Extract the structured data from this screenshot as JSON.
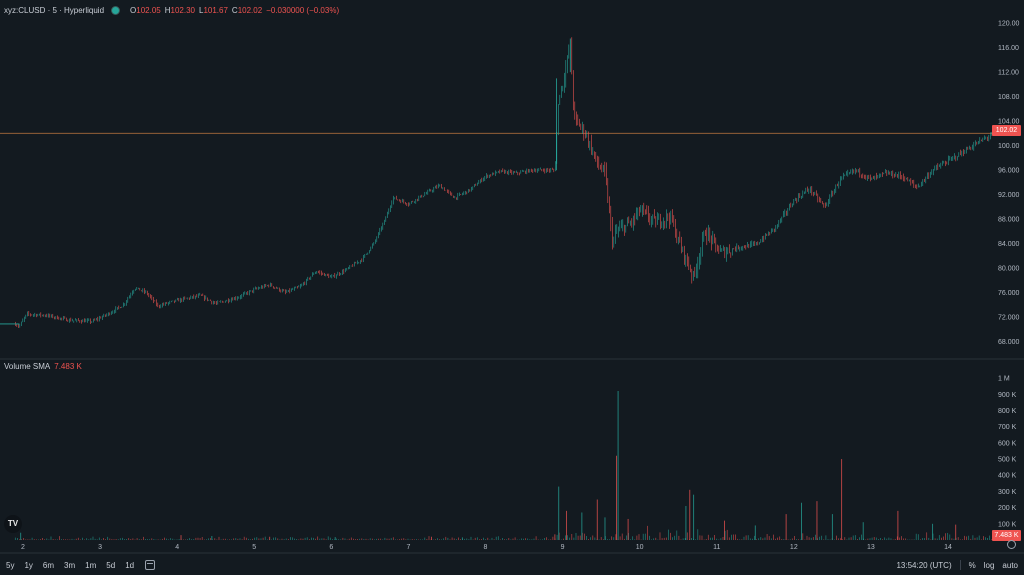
{
  "legend": {
    "symbol": "xyz:CLUSD · 5 · Hyperliquid",
    "o_label": "O",
    "o_value": "102.05",
    "h_label": "H",
    "h_value": "102.30",
    "l_label": "L",
    "l_value": "101.67",
    "c_label": "C",
    "c_value": "102.02",
    "change": "−0.030000 (−0.03%)"
  },
  "volume_legend": {
    "label": "Volume SMA",
    "value": "7.483 K"
  },
  "last_price_tag": "102.02",
  "volume_tag": "7.483 K",
  "timeframes": [
    "5y",
    "1y",
    "6m",
    "3m",
    "1m",
    "5d",
    "1d"
  ],
  "clock": "13:54:20 (UTC)",
  "toolbar": {
    "percent": "%",
    "log": "log",
    "auto": "auto"
  },
  "logo_text": "TV",
  "colors": {
    "up": "#26a69a",
    "down": "#ef5350",
    "background": "#131a20",
    "price_line": "#a86a3a"
  },
  "chart_data": [
    {
      "type": "candlestick",
      "title": "",
      "x_labels": [
        "2",
        "3",
        "4",
        "5",
        "6",
        "7",
        "8",
        "9",
        "10",
        "11",
        "12",
        "13",
        "14"
      ],
      "y_ticks": [
        "120.00",
        "116.00",
        "112.00",
        "108.00",
        "104.00",
        "100.00",
        "96.000",
        "92.000",
        "88.000",
        "84.000",
        "80.000",
        "76.000",
        "72.000",
        "68.000"
      ],
      "ylim": [
        65.5,
        121.5
      ],
      "last_price": 102.02,
      "price_path": [
        [
          1.0,
          70.9
        ],
        [
          1.9,
          70.9
        ],
        [
          1.95,
          70.5
        ],
        [
          2.05,
          72.5
        ],
        [
          2.3,
          72.3
        ],
        [
          2.6,
          71.5
        ],
        [
          2.9,
          71.3
        ],
        [
          3.1,
          72.5
        ],
        [
          3.3,
          74.0
        ],
        [
          3.45,
          76.8
        ],
        [
          3.6,
          76.0
        ],
        [
          3.75,
          73.8
        ],
        [
          3.9,
          74.4
        ],
        [
          4.1,
          75.0
        ],
        [
          4.3,
          75.5
        ],
        [
          4.5,
          74.2
        ],
        [
          4.8,
          75.3
        ],
        [
          5.0,
          76.5
        ],
        [
          5.2,
          77.3
        ],
        [
          5.4,
          76.0
        ],
        [
          5.6,
          77.0
        ],
        [
          5.8,
          79.5
        ],
        [
          6.0,
          78.5
        ],
        [
          6.2,
          79.8
        ],
        [
          6.4,
          81.5
        ],
        [
          6.55,
          84.0
        ],
        [
          6.7,
          88.0
        ],
        [
          6.8,
          91.5
        ],
        [
          7.0,
          90.5
        ],
        [
          7.2,
          92.0
        ],
        [
          7.4,
          93.5
        ],
        [
          7.6,
          91.5
        ],
        [
          7.8,
          92.8
        ],
        [
          8.0,
          95.0
        ],
        [
          8.2,
          95.8
        ],
        [
          8.4,
          95.5
        ],
        [
          8.6,
          96.0
        ],
        [
          8.9,
          96.0
        ],
        [
          8.95,
          108.0
        ],
        [
          9.0,
          110.0
        ],
        [
          9.1,
          116.5
        ],
        [
          9.15,
          104.5
        ],
        [
          9.3,
          102.0
        ],
        [
          9.45,
          97.0
        ],
        [
          9.55,
          95.5
        ],
        [
          9.65,
          84.0
        ],
        [
          9.7,
          86.0
        ],
        [
          9.9,
          87.5
        ],
        [
          10.0,
          89.5
        ],
        [
          10.2,
          87.5
        ],
        [
          10.4,
          88.5
        ],
        [
          10.5,
          84.5
        ],
        [
          10.7,
          78.5
        ],
        [
          10.85,
          86.0
        ],
        [
          11.05,
          82.5
        ],
        [
          11.3,
          83.5
        ],
        [
          11.5,
          83.8
        ],
        [
          11.75,
          86.5
        ],
        [
          12.0,
          91.0
        ],
        [
          12.2,
          93.0
        ],
        [
          12.4,
          90.0
        ],
        [
          12.6,
          94.5
        ],
        [
          12.8,
          96.0
        ],
        [
          13.0,
          94.5
        ],
        [
          13.2,
          95.5
        ],
        [
          13.4,
          95.0
        ],
        [
          13.6,
          93.2
        ],
        [
          13.8,
          96.0
        ],
        [
          14.0,
          97.5
        ],
        [
          14.2,
          99.0
        ],
        [
          14.45,
          101.0
        ],
        [
          14.6,
          102.0
        ]
      ]
    },
    {
      "type": "bar",
      "title": "",
      "y_ticks": [
        "1 M",
        "900 K",
        "800 K",
        "700 K",
        "600 K",
        "500 K",
        "400 K",
        "300 K",
        "200 K",
        "100 K"
      ],
      "ylim": [
        0,
        1050000
      ],
      "spikes": [
        [
          1.97,
          45000
        ],
        [
          4.05,
          30000
        ],
        [
          4.45,
          25000
        ],
        [
          5.2,
          20000
        ],
        [
          6.05,
          18000
        ],
        [
          7.3,
          20000
        ],
        [
          7.7,
          16000
        ],
        [
          8.9,
          35000
        ],
        [
          8.95,
          330000
        ],
        [
          9.05,
          180000
        ],
        [
          9.25,
          170000
        ],
        [
          9.45,
          250000
        ],
        [
          9.55,
          140000
        ],
        [
          9.7,
          520000
        ],
        [
          9.72,
          920000
        ],
        [
          9.85,
          130000
        ],
        [
          10.6,
          210000
        ],
        [
          10.65,
          310000
        ],
        [
          10.7,
          280000
        ],
        [
          11.1,
          120000
        ],
        [
          11.5,
          90000
        ],
        [
          11.9,
          160000
        ],
        [
          12.1,
          230000
        ],
        [
          12.3,
          240000
        ],
        [
          12.5,
          160000
        ],
        [
          12.62,
          500000
        ],
        [
          12.9,
          110000
        ],
        [
          13.35,
          180000
        ],
        [
          13.8,
          100000
        ],
        [
          14.1,
          95000
        ]
      ]
    }
  ]
}
